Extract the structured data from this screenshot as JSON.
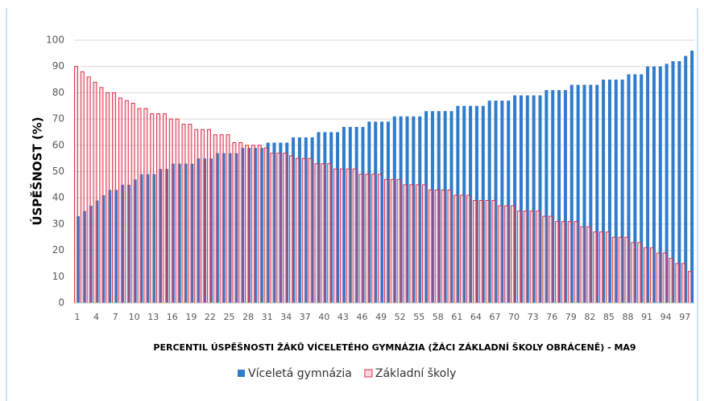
{
  "chart_data": {
    "type": "bar",
    "x_label": "PERCENTIL ÚSPĚŠNOSTI ŽÁKŮ VÍCELETÉHO GYMNÁZIA (ŽÁCI ZÁKLADNÍ ŠKOLY OBRÁCENĚ) - MA9",
    "y_label": "ÚSPĚŠNOST (%)",
    "categories": [
      "1",
      null,
      null,
      "4",
      null,
      null,
      "7",
      null,
      null,
      "10",
      null,
      null,
      "13",
      null,
      null,
      "16",
      null,
      null,
      "19",
      null,
      null,
      "22",
      null,
      null,
      "25",
      null,
      null,
      "28",
      null,
      null,
      "31",
      null,
      null,
      "34",
      null,
      null,
      "37",
      null,
      null,
      "40",
      null,
      null,
      "43",
      null,
      null,
      "46",
      null,
      null,
      "49",
      null,
      null,
      "52",
      null,
      null,
      "55",
      null,
      null,
      "58",
      null,
      null,
      "61",
      null,
      null,
      "64",
      null,
      null,
      "67",
      null,
      null,
      "70",
      null,
      null,
      "73",
      null,
      null,
      "76",
      null,
      null,
      "79",
      null,
      null,
      "82",
      null,
      null,
      "85",
      null,
      null,
      "88",
      null,
      null,
      "91",
      null,
      null,
      "94",
      null,
      null,
      "97",
      null
    ],
    "series": [
      {
        "name": "Víceletá gymnázia",
        "color": "#2e7ccc",
        "values": [
          33,
          35,
          37,
          39,
          41,
          43,
          43,
          45,
          45,
          47,
          49,
          49,
          49,
          51,
          51,
          53,
          53,
          53,
          53,
          55,
          55,
          55,
          57,
          57,
          57,
          57,
          59,
          59,
          59,
          59,
          61,
          61,
          61,
          61,
          63,
          63,
          63,
          63,
          65,
          65,
          65,
          65,
          67,
          67,
          67,
          67,
          69,
          69,
          69,
          69,
          71,
          71,
          71,
          71,
          71,
          73,
          73,
          73,
          73,
          73,
          75,
          75,
          75,
          75,
          75,
          77,
          77,
          77,
          77,
          79,
          79,
          79,
          79,
          79,
          81,
          81,
          81,
          81,
          83,
          83,
          83,
          83,
          83,
          85,
          85,
          85,
          85,
          87,
          87,
          87,
          90,
          90,
          90,
          91,
          92,
          92,
          94,
          96
        ]
      },
      {
        "name": "Základní školy",
        "color": "#d9304a",
        "values": [
          90,
          88,
          86,
          84,
          82,
          80,
          80,
          78,
          77,
          76,
          74,
          74,
          72,
          72,
          72,
          70,
          70,
          68,
          68,
          66,
          66,
          66,
          64,
          64,
          64,
          61,
          61,
          60,
          60,
          60,
          59,
          57,
          57,
          57,
          56,
          55,
          55,
          55,
          53,
          53,
          53,
          51,
          51,
          51,
          51,
          49,
          49,
          49,
          49,
          47,
          47,
          47,
          45,
          45,
          45,
          45,
          43,
          43,
          43,
          43,
          41,
          41,
          41,
          39,
          39,
          39,
          39,
          37,
          37,
          37,
          35,
          35,
          35,
          35,
          33,
          33,
          31,
          31,
          31,
          31,
          29,
          29,
          27,
          27,
          27,
          25,
          25,
          25,
          23,
          23,
          21,
          21,
          19,
          19,
          17,
          15,
          15,
          12
        ]
      }
    ],
    "ylim": [
      0,
      100
    ],
    "yticks": [
      0,
      10,
      20,
      30,
      40,
      50,
      60,
      70,
      80,
      90,
      100
    ],
    "grid": true,
    "legend": "bottom"
  }
}
